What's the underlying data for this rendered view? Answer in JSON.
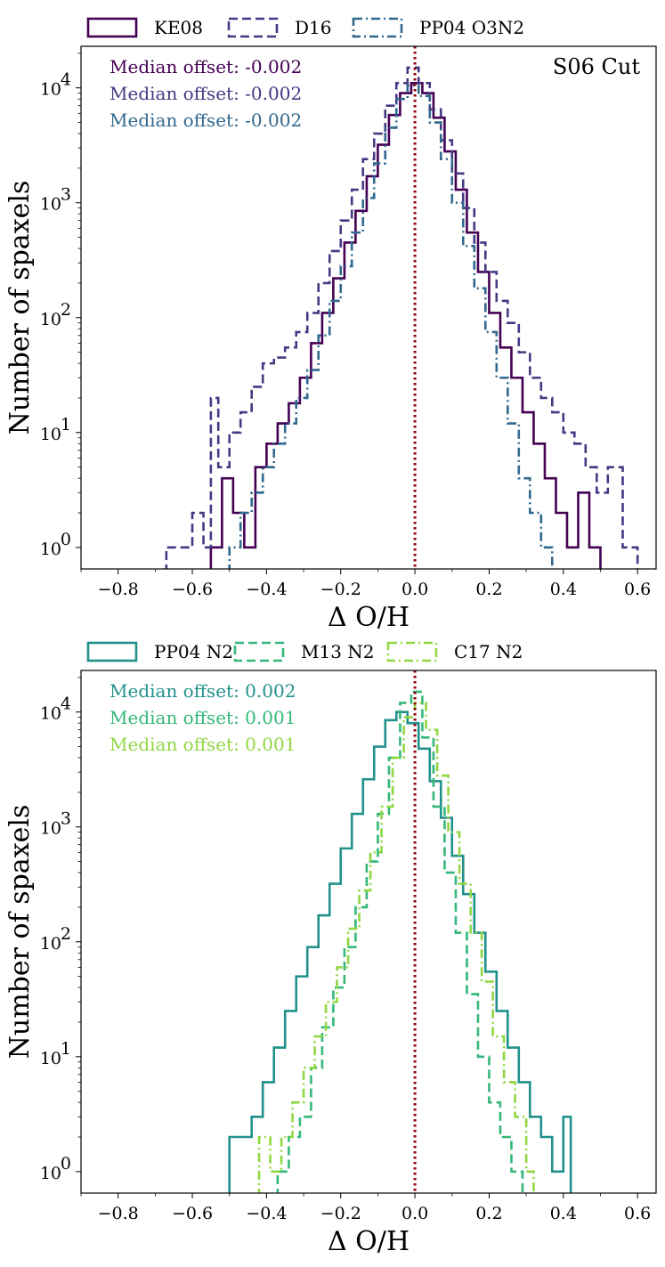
{
  "chart_data": [
    {
      "type": "histogram",
      "xlabel": "Δ O/H",
      "ylabel": "Number of spaxels",
      "yscale": "log",
      "xlim": [
        -0.9,
        0.65
      ],
      "ylim": [
        0.65,
        23000
      ],
      "xticks": [
        "−0.8",
        "−0.6",
        "−0.4",
        "−0.2",
        "0.0",
        "0.2",
        "0.4",
        "0.6"
      ],
      "xtick_values": [
        -0.8,
        -0.6,
        -0.4,
        -0.2,
        0.0,
        0.2,
        0.4,
        0.6
      ],
      "yticks": [
        "10",
        "10",
        "10",
        "10",
        "10"
      ],
      "ytick_exponents": [
        "0",
        "1",
        "2",
        "3",
        "4"
      ],
      "ytick_values": [
        1,
        10,
        100,
        1000,
        10000
      ],
      "corner_label": "S06 Cut",
      "vline": {
        "x": 0.0,
        "color": "#8b0000",
        "style": "dotted"
      },
      "legend_position": "above-left",
      "series": [
        {
          "name": "KE08",
          "color": "#440154",
          "style": "solid",
          "annotation": "Median offset: -0.002",
          "annotation_color": "#440154",
          "edges": [
            -0.55,
            -0.52,
            -0.49,
            -0.46,
            -0.43,
            -0.4,
            -0.37,
            -0.34,
            -0.31,
            -0.28,
            -0.25,
            -0.22,
            -0.19,
            -0.16,
            -0.13,
            -0.1,
            -0.07,
            -0.04,
            -0.01,
            0.02,
            0.05,
            0.08,
            0.11,
            0.14,
            0.17,
            0.2,
            0.23,
            0.26,
            0.29,
            0.32,
            0.35,
            0.38,
            0.41,
            0.44,
            0.47,
            0.5
          ],
          "counts": [
            1,
            4,
            2,
            1,
            5,
            8,
            12,
            18,
            30,
            60,
            110,
            220,
            450,
            850,
            1700,
            3200,
            5800,
            9000,
            11000,
            9000,
            5500,
            2800,
            1300,
            550,
            250,
            110,
            55,
            30,
            15,
            8,
            4,
            2,
            1,
            3,
            1
          ]
        },
        {
          "name": "D16",
          "color": "#443983",
          "style": "dashed",
          "annotation": "Median offset: -0.002",
          "annotation_color": "#443983",
          "edges": [
            -0.67,
            -0.6,
            -0.57,
            -0.55,
            -0.53,
            -0.5,
            -0.47,
            -0.44,
            -0.41,
            -0.38,
            -0.35,
            -0.32,
            -0.29,
            -0.26,
            -0.23,
            -0.2,
            -0.17,
            -0.14,
            -0.11,
            -0.08,
            -0.05,
            -0.02,
            0.01,
            0.04,
            0.07,
            0.1,
            0.13,
            0.16,
            0.19,
            0.22,
            0.25,
            0.28,
            0.31,
            0.34,
            0.37,
            0.4,
            0.43,
            0.46,
            0.49,
            0.52,
            0.56,
            0.6
          ],
          "counts": [
            1,
            2,
            1,
            20,
            5,
            10,
            15,
            25,
            40,
            45,
            55,
            75,
            110,
            200,
            380,
            700,
            1300,
            2400,
            4000,
            7000,
            11000,
            15000,
            11000,
            6500,
            3500,
            1800,
            900,
            450,
            250,
            140,
            90,
            50,
            30,
            20,
            15,
            10,
            8,
            5,
            3,
            5,
            1
          ]
        },
        {
          "name": "PP04 O3N2",
          "color": "#31688e",
          "style": "dashdot",
          "annotation": "Median offset: -0.002",
          "annotation_color": "#31688e",
          "edges": [
            -0.5,
            -0.47,
            -0.44,
            -0.41,
            -0.38,
            -0.35,
            -0.32,
            -0.29,
            -0.26,
            -0.23,
            -0.2,
            -0.17,
            -0.14,
            -0.11,
            -0.08,
            -0.05,
            -0.02,
            0.01,
            0.04,
            0.07,
            0.1,
            0.13,
            0.16,
            0.19,
            0.22,
            0.25,
            0.28,
            0.31,
            0.34,
            0.37
          ],
          "counts": [
            1,
            2,
            3,
            5,
            8,
            12,
            20,
            35,
            70,
            140,
            280,
            550,
            1100,
            2200,
            4500,
            8000,
            10500,
            8500,
            5000,
            2400,
            1000,
            420,
            180,
            75,
            30,
            12,
            4,
            2,
            1
          ]
        }
      ]
    },
    {
      "type": "histogram",
      "xlabel": "Δ O/H",
      "ylabel": "Number of spaxels",
      "yscale": "log",
      "xlim": [
        -0.9,
        0.65
      ],
      "ylim": [
        0.65,
        23000
      ],
      "xticks": [
        "−0.8",
        "−0.6",
        "−0.4",
        "−0.2",
        "0.0",
        "0.2",
        "0.4",
        "0.6"
      ],
      "xtick_values": [
        -0.8,
        -0.6,
        -0.4,
        -0.2,
        0.0,
        0.2,
        0.4,
        0.6
      ],
      "yticks": [
        "10",
        "10",
        "10",
        "10",
        "10"
      ],
      "ytick_exponents": [
        "0",
        "1",
        "2",
        "3",
        "4"
      ],
      "ytick_values": [
        1,
        10,
        100,
        1000,
        10000
      ],
      "corner_label": "",
      "vline": {
        "x": 0.0,
        "color": "#8b0000",
        "style": "dotted"
      },
      "legend_position": "above-left",
      "series": [
        {
          "name": "PP04 N2",
          "color": "#21918c",
          "style": "solid",
          "annotation": "Median offset: 0.002",
          "annotation_color": "#21918c",
          "edges": [
            -0.5,
            -0.47,
            -0.44,
            -0.41,
            -0.38,
            -0.35,
            -0.32,
            -0.29,
            -0.26,
            -0.23,
            -0.2,
            -0.17,
            -0.14,
            -0.11,
            -0.08,
            -0.05,
            -0.02,
            0.01,
            0.04,
            0.07,
            0.1,
            0.13,
            0.16,
            0.19,
            0.22,
            0.25,
            0.28,
            0.31,
            0.34,
            0.37,
            0.4,
            0.42
          ],
          "counts": [
            2,
            2,
            3,
            6,
            12,
            25,
            50,
            90,
            170,
            320,
            650,
            1300,
            2600,
            5000,
            8500,
            10000,
            8000,
            4800,
            2500,
            1200,
            560,
            260,
            120,
            55,
            25,
            12,
            6,
            3,
            2,
            1,
            3
          ]
        },
        {
          "name": "M13 N2",
          "color": "#35b779",
          "style": "dashed",
          "annotation": "Median offset: 0.001",
          "annotation_color": "#35b779",
          "edges": [
            -0.37,
            -0.34,
            -0.31,
            -0.28,
            -0.25,
            -0.22,
            -0.19,
            -0.16,
            -0.13,
            -0.1,
            -0.07,
            -0.04,
            -0.01,
            0.02,
            0.05,
            0.08,
            0.11,
            0.14,
            0.17,
            0.2,
            0.23,
            0.26,
            0.29
          ],
          "counts": [
            1,
            2,
            3,
            8,
            18,
            40,
            90,
            200,
            500,
            1300,
            4000,
            12000,
            15000,
            6000,
            1500,
            400,
            120,
            35,
            10,
            4,
            2,
            1
          ]
        },
        {
          "name": "C17 N2",
          "color": "#90d743",
          "style": "dashdot",
          "annotation": "Median offset: 0.001",
          "annotation_color": "#90d743",
          "edges": [
            -0.42,
            -0.39,
            -0.36,
            -0.33,
            -0.3,
            -0.27,
            -0.24,
            -0.21,
            -0.18,
            -0.15,
            -0.12,
            -0.09,
            -0.06,
            -0.03,
            0.0,
            0.03,
            0.06,
            0.09,
            0.12,
            0.15,
            0.18,
            0.21,
            0.24,
            0.27,
            0.3,
            0.32
          ],
          "counts": [
            2,
            1,
            2,
            4,
            8,
            15,
            30,
            60,
            130,
            280,
            600,
            1500,
            4000,
            9000,
            12000,
            7000,
            2800,
            900,
            320,
            120,
            45,
            15,
            6,
            3,
            1
          ]
        }
      ]
    }
  ]
}
